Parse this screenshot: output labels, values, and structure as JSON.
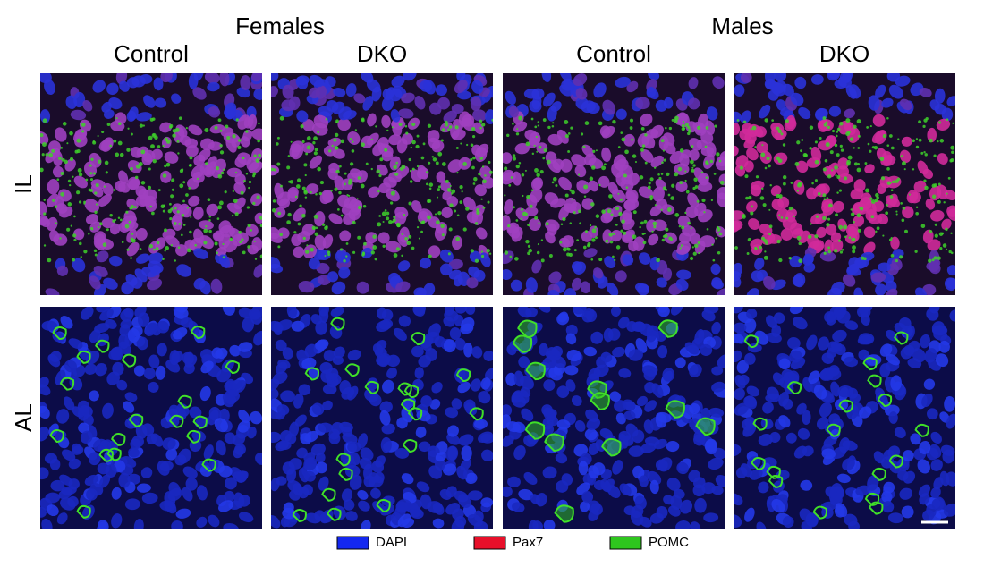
{
  "column_groups": [
    {
      "label": "Females",
      "columns": [
        "Control",
        "DKO"
      ]
    },
    {
      "label": "Males",
      "columns": [
        "Control",
        "DKO"
      ]
    }
  ],
  "rows": [
    "IL",
    "AL"
  ],
  "legend": [
    {
      "label": "DAPI",
      "color": "#1428f0"
    },
    {
      "label": "Pax7",
      "color": "#e8102a"
    },
    {
      "label": "POMC",
      "color": "#2ec61e"
    }
  ]
}
